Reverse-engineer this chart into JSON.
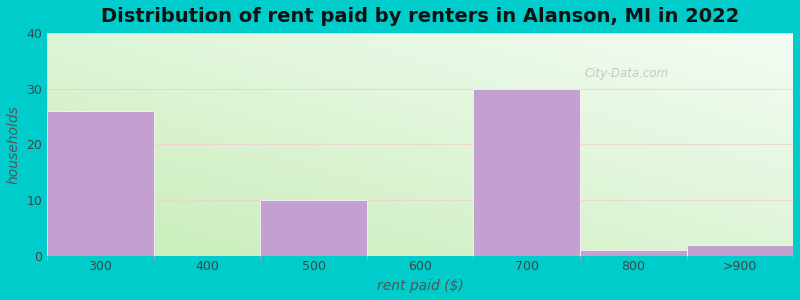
{
  "title": "Distribution of rent paid by renters in Alanson, MI in 2022",
  "categories": [
    "300",
    "400",
    "500",
    "600",
    "700",
    "800",
    ">900"
  ],
  "values": [
    26,
    0,
    10,
    0,
    30,
    1,
    2
  ],
  "bar_color": "#c4a0d0",
  "xlabel": "rent paid ($)",
  "ylabel": "households",
  "ylim": [
    0,
    40
  ],
  "yticks": [
    0,
    10,
    20,
    30,
    40
  ],
  "bg_left_color": "#c8e8b8",
  "bg_right_color": "#f0faf0",
  "bg_top_color": "#e8f8e8",
  "outer_bg": "#00cccc",
  "watermark": "City-Data.com",
  "title_fontsize": 14,
  "axis_label_fontsize": 10,
  "tick_fontsize": 9
}
